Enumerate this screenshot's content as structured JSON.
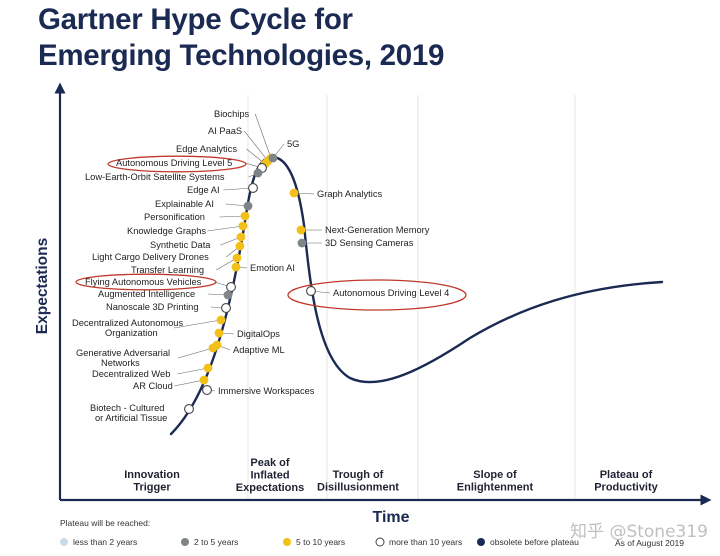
{
  "title": {
    "line1": "Gartner Hype Cycle for",
    "line2": "Emerging Technologies, 2019"
  },
  "axes": {
    "y_label": "Expectations",
    "x_label": "Time"
  },
  "phases": [
    {
      "id": "innovation",
      "lines": [
        "Innovation",
        "Trigger"
      ]
    },
    {
      "id": "peak",
      "lines": [
        "Peak of",
        "Inflated",
        "Expectations"
      ]
    },
    {
      "id": "trough",
      "lines": [
        "Trough of",
        "Disillusionment"
      ]
    },
    {
      "id": "slope",
      "lines": [
        "Slope of",
        "Enlightenment"
      ]
    },
    {
      "id": "plateau",
      "lines": [
        "Plateau of",
        "Productivity"
      ]
    }
  ],
  "legend": {
    "title": "Plateau will be reached:",
    "items": [
      {
        "key": "lt2",
        "label": "less than 2 years"
      },
      {
        "key": "2to5",
        "label": "2 to 5 years"
      },
      {
        "key": "5to10",
        "label": "5 to 10 years"
      },
      {
        "key": "gt10",
        "label": "more than 10 years"
      },
      {
        "key": "obsolete",
        "label": "obsolete before plateau"
      }
    ],
    "as_of": "As of August 2019"
  },
  "colors": {
    "lt2": "#c8dbe7",
    "2to5": "#7f8487",
    "5to10": "#f2c019",
    "gt10": "#ffffff",
    "obsolete": "#1b2a52",
    "curve": "#1b2a52",
    "circle": "#c0392b"
  },
  "technologies": [
    {
      "name": "Biochips",
      "status": "5to10"
    },
    {
      "name": "AI PaaS",
      "status": "5to10"
    },
    {
      "name": "Edge Analytics",
      "status": "5to10"
    },
    {
      "name": "Autonomous Driving Level 5",
      "status": "gt10",
      "highlighted": true
    },
    {
      "name": "Low-Earth-Orbit Satellite Systems",
      "status": "2to5"
    },
    {
      "name": "Edge AI",
      "status": "gt10"
    },
    {
      "name": "Explainable AI",
      "status": "2to5"
    },
    {
      "name": "Personification",
      "status": "5to10"
    },
    {
      "name": "Knowledge Graphs",
      "status": "5to10"
    },
    {
      "name": "Synthetic Data",
      "status": "5to10"
    },
    {
      "name": "Light Cargo Delivery Drones",
      "status": "5to10"
    },
    {
      "name": "Transfer Learning",
      "status": "5to10"
    },
    {
      "name": "Flying Autonomous Vehicles",
      "status": "gt10",
      "highlighted": true
    },
    {
      "name": "Augmented Intelligence",
      "status": "2to5"
    },
    {
      "name": "Nanoscale 3D Printing",
      "status": "gt10"
    },
    {
      "name": "Decentralized Autonomous Organization",
      "status": "5to10"
    },
    {
      "name": "Generative Adversarial Networks",
      "status": "5to10"
    },
    {
      "name": "Decentralized Web",
      "status": "5to10"
    },
    {
      "name": "AR Cloud",
      "status": "5to10"
    },
    {
      "name": "Biotech - Cultured or Artificial Tissue",
      "status": "gt10"
    },
    {
      "name": "5G",
      "status": "2to5"
    },
    {
      "name": "Graph Analytics",
      "status": "5to10"
    },
    {
      "name": "Next-Generation Memory",
      "status": "5to10"
    },
    {
      "name": "3D Sensing Cameras",
      "status": "2to5"
    },
    {
      "name": "Emotion AI",
      "status": "5to10"
    },
    {
      "name": "DigitalOps",
      "status": "5to10"
    },
    {
      "name": "Adaptive ML",
      "status": "5to10"
    },
    {
      "name": "Immersive Workspaces",
      "status": "gt10"
    },
    {
      "name": "Autonomous Driving Level 4",
      "status": "gt10",
      "highlighted": true
    }
  ],
  "watermark": "知乎 @Stone319"
}
